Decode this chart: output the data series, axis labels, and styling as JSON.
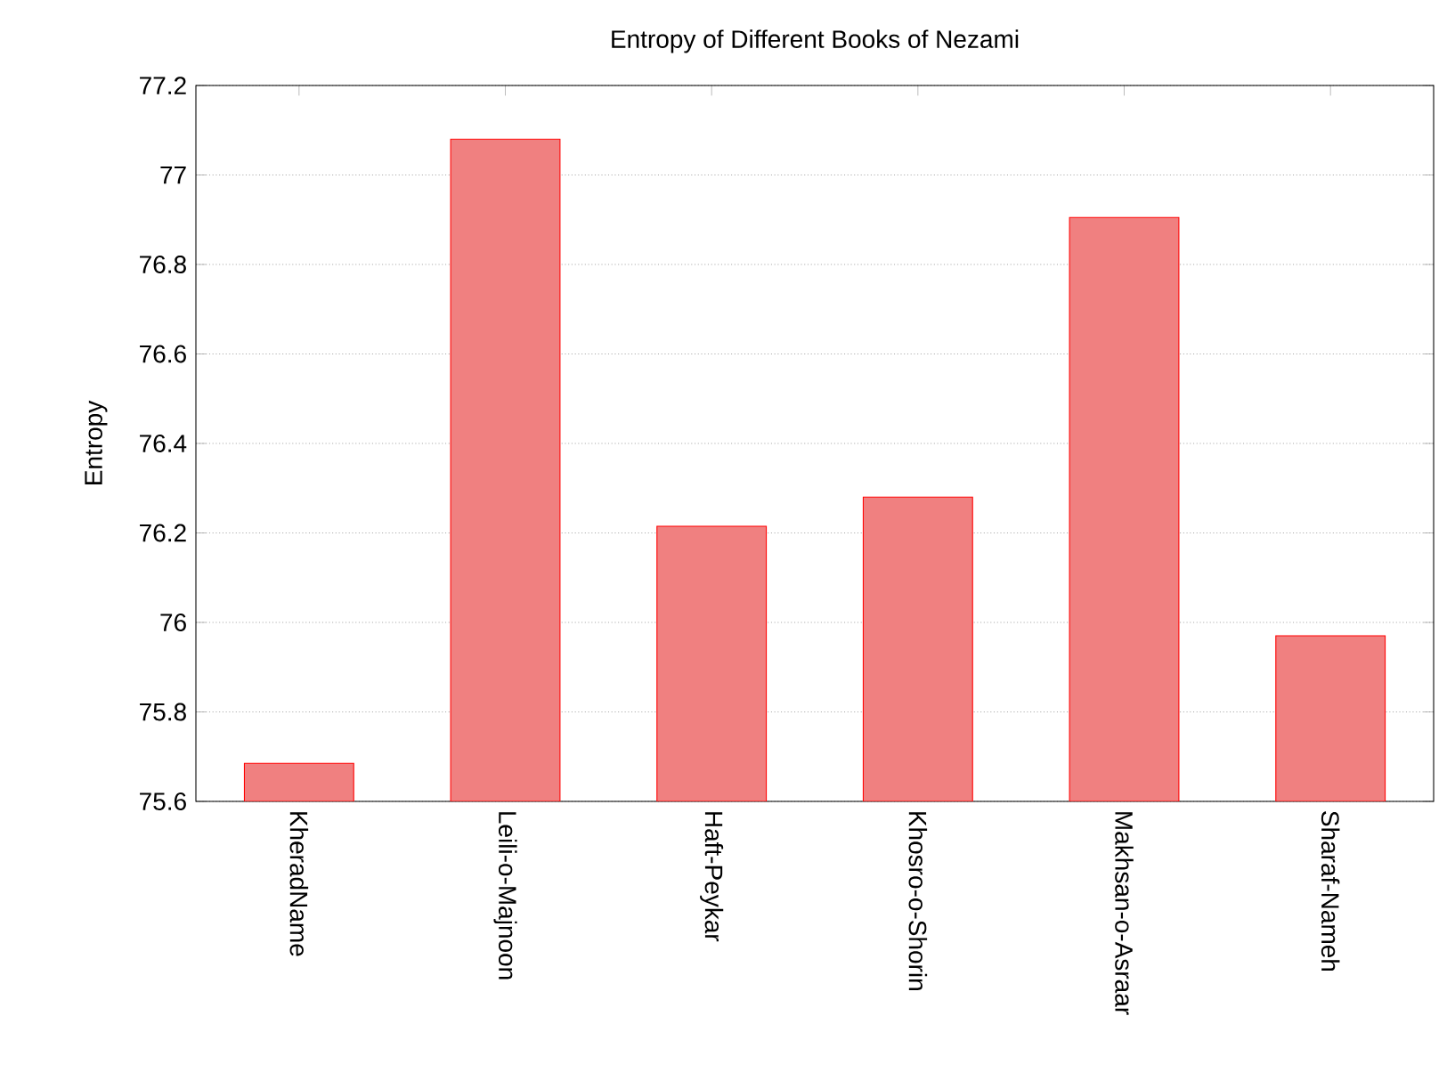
{
  "chart_data": {
    "type": "bar",
    "title": "Entropy of Different Books of Nezami",
    "ylabel": "Entropy",
    "categories": [
      "KheradName",
      "Leili-o-Majnoon",
      "Haft-Peykar",
      "Khosro-o-Shorin",
      "Makhsan-o-Asraar",
      "Sharaf-Nameh"
    ],
    "values": [
      75.685,
      77.08,
      76.215,
      76.28,
      76.905,
      75.97
    ],
    "color": "#f08080",
    "ylim": [
      75.6,
      77.2
    ],
    "yticks": [
      75.6,
      75.8,
      76,
      76.2,
      76.4,
      76.6,
      76.8,
      77,
      77.2
    ],
    "grid": "y"
  }
}
